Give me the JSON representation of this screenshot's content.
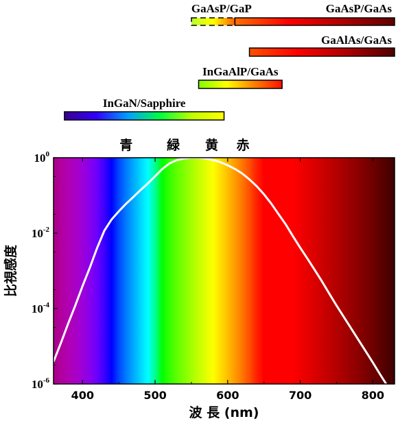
{
  "chart_data": {
    "type": "line",
    "title": "",
    "xlabel": "波 長 (nm)",
    "ylabel": "比視感度",
    "yscale": "log",
    "xlim": [
      360,
      830
    ],
    "ylim": [
      1e-06,
      1
    ],
    "x_ticks": [
      "400",
      "500",
      "600",
      "700",
      "800"
    ],
    "x_tick_values": [
      400,
      500,
      600,
      700,
      800
    ],
    "y_tick_values": [
      1,
      0.01,
      0.0001,
      1e-06
    ],
    "y_ticks": [
      {
        "base": "10",
        "exp": "0"
      },
      {
        "base": "10",
        "exp": "-2"
      },
      {
        "base": "10",
        "exp": "-4"
      },
      {
        "base": "10",
        "exp": "-6"
      }
    ],
    "background": "visible-spectrum color gradient",
    "curve_color": "#ffffff",
    "series": [
      {
        "x": [
          360,
          370,
          380,
          390,
          400,
          410,
          420,
          430,
          440,
          450,
          460,
          470,
          480,
          490,
          500,
          510,
          520,
          530,
          540,
          550,
          555,
          560,
          570,
          580,
          590,
          600,
          610,
          620,
          630,
          640,
          650,
          660,
          670,
          680,
          690,
          700,
          710,
          720,
          730,
          740,
          750,
          760,
          770,
          780,
          790,
          800,
          810,
          820
        ],
        "y": [
          3.9e-06,
          1.2e-05,
          3.9e-05,
          0.00012,
          0.000396,
          0.00121,
          0.004,
          0.0116,
          0.023,
          0.038,
          0.06,
          0.091,
          0.139,
          0.208,
          0.323,
          0.503,
          0.71,
          0.862,
          0.954,
          0.995,
          1.0,
          0.995,
          0.952,
          0.87,
          0.757,
          0.631,
          0.503,
          0.381,
          0.265,
          0.175,
          0.107,
          0.061,
          0.032,
          0.017,
          0.0082,
          0.0041,
          0.0021,
          0.00105,
          0.00052,
          0.00025,
          0.00012,
          6e-05,
          3e-05,
          1.5e-05,
          7.5e-06,
          3.7e-06,
          1.8e-06,
          9e-07
        ]
      }
    ],
    "color_names": [
      {
        "label": "青",
        "x": 460
      },
      {
        "label": "緑",
        "x": 525
      },
      {
        "label": "黄",
        "x": 578
      },
      {
        "label": "赤",
        "x": 621
      }
    ],
    "led_bars": [
      {
        "label": "GaAsP/GaP",
        "start": 550,
        "end": 610,
        "dashed": true,
        "gradient": [
          "#b8ff30",
          "#ffff00",
          "#ff6000"
        ]
      },
      {
        "label": "GaAsP/GaAs",
        "start": 610,
        "end": 830,
        "dashed": false,
        "gradient": [
          "#ff7000",
          "#ff0000",
          "#b00000",
          "#600000"
        ]
      },
      {
        "label": "GaAlAs/GaAs",
        "start": 630,
        "end": 830,
        "dashed": false,
        "gradient": [
          "#ff5000",
          "#ff0000",
          "#b00000",
          "#500000"
        ]
      },
      {
        "label": "InGaAlP/GaAs",
        "start": 560,
        "end": 675,
        "dashed": false,
        "gradient": [
          "#80ff00",
          "#ffff00",
          "#ff8000",
          "#ff1000"
        ]
      },
      {
        "label": "InGaN/Sapphire",
        "start": 375,
        "end": 595,
        "dashed": false,
        "gradient": [
          "#3a0090",
          "#3000ff",
          "#00a0ff",
          "#00ff40",
          "#c0ff00",
          "#ffff00"
        ]
      }
    ]
  }
}
